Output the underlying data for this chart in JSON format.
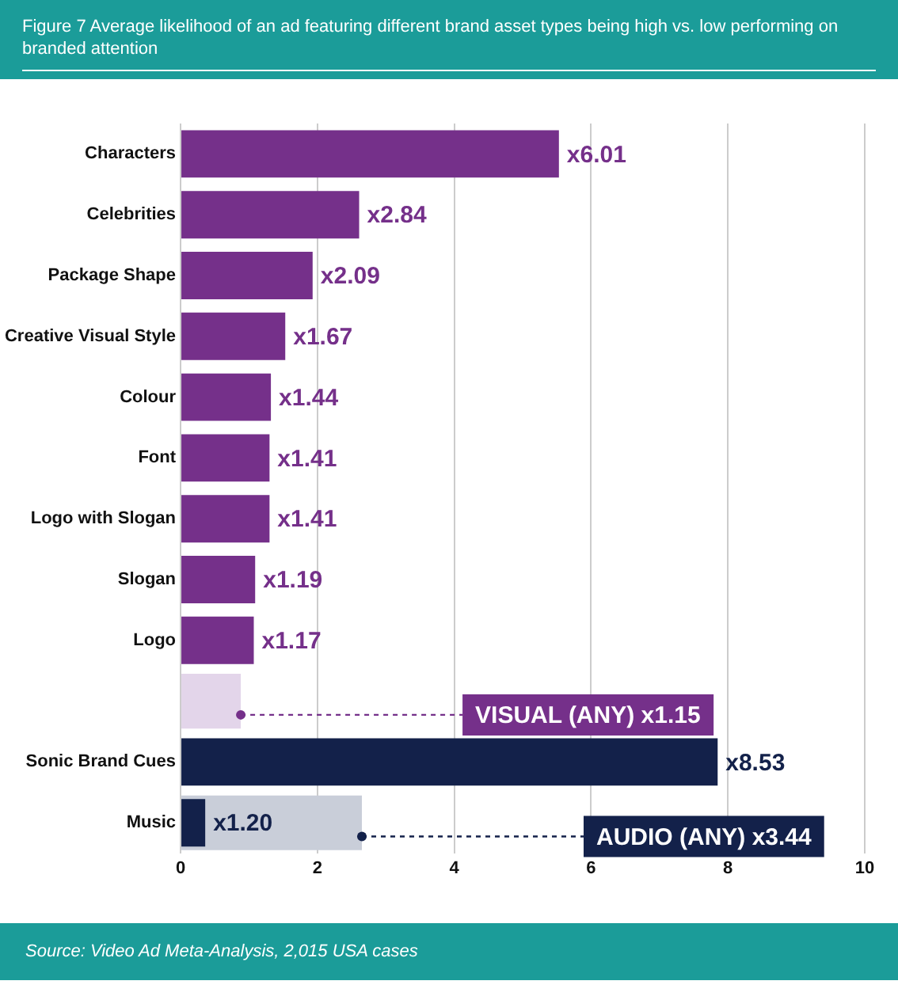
{
  "chart_data": {
    "type": "bar",
    "orientation": "horizontal",
    "title": "Figure 7 Average likelihood of an ad featuring different brand asset types being high vs. low performing on branded attention",
    "categories": [
      "Characters",
      "Celebrities",
      "Package Shape",
      "Creative Visual Style",
      "Colour",
      "Font",
      "Logo with Slogan",
      "Slogan",
      "Logo",
      null,
      "Sonic Brand Cues",
      "Music"
    ],
    "series": [
      {
        "colors": [
          "#75308a",
          "#75308a",
          "#75308a",
          "#75308a",
          "#75308a",
          "#75308a",
          "#75308a",
          "#75308a",
          "#75308a",
          "#75308a",
          "#13214a",
          "#13214a"
        ],
        "values": [
          5.53,
          2.61,
          1.93,
          1.53,
          1.32,
          1.3,
          1.3,
          1.09,
          1.07,
          null,
          7.85,
          0.36
        ],
        "value_labels": [
          "x6.01",
          "x2.84",
          "x2.09",
          "x1.67",
          "x1.44",
          "x1.41",
          "x1.41",
          "x1.19",
          "x1.17",
          null,
          "x8.53",
          "x1.20"
        ]
      },
      {
        "colors": [
          "#e3d5ea",
          "#e3d5ea",
          "#e3d5ea",
          "#e3d5ea",
          "#e3d5ea",
          "#e3d5ea",
          "#e3d5ea",
          "#e3d5ea",
          "#e3d5ea",
          "#e3d5ea",
          "#c9ced9",
          "#c9ced9"
        ],
        "values": [
          null,
          null,
          null,
          null,
          null,
          null,
          null,
          null,
          null,
          0.88,
          null,
          2.65
        ],
        "value_labels": [
          null,
          null,
          null,
          null,
          null,
          null,
          null,
          null,
          null,
          "VISUAL (ANY) x1.15",
          null,
          "AUDIO (ANY) x3.44"
        ]
      }
    ],
    "xlim": [
      0,
      10
    ],
    "xticks": [
      0,
      2,
      4,
      6,
      8,
      10
    ],
    "grid": "x",
    "legend": false,
    "annotations": [
      "Source: Video Ad Meta-Analysis, 2,015 USA cases"
    ]
  }
}
